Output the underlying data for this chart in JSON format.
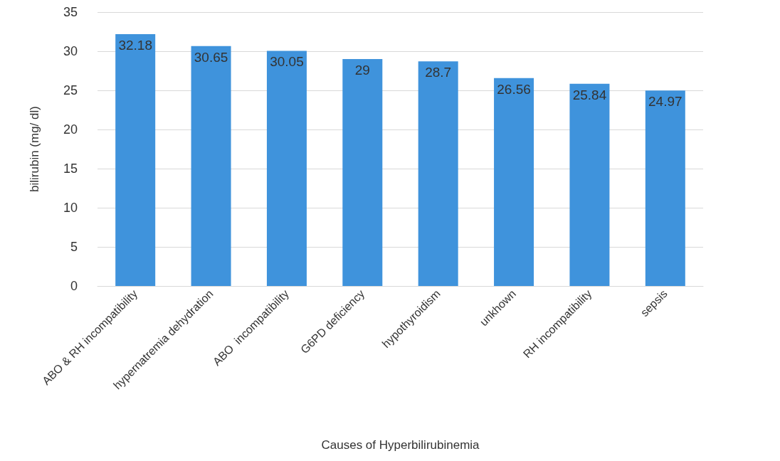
{
  "chart_data": {
    "type": "bar",
    "xlabel": "Causes of Hyperbilirubinemia",
    "ylabel": "bilirubin (mg/ dl)",
    "categories": [
      "ABO & RH incompatibility",
      "hypernatremia dehydration",
      "ABO  incompatibility",
      "G6PD deficiency",
      "hypothyroidism",
      "unkhown",
      "RH incompatibility",
      "sepsis"
    ],
    "values": [
      32.18,
      30.65,
      30.05,
      29,
      28.7,
      26.56,
      25.84,
      24.97
    ],
    "color": "#3f93dc",
    "ylim": [
      0,
      35
    ],
    "yticks": [
      0,
      5,
      10,
      15,
      20,
      25,
      30,
      35
    ],
    "grid": "y",
    "data_labels": true
  }
}
